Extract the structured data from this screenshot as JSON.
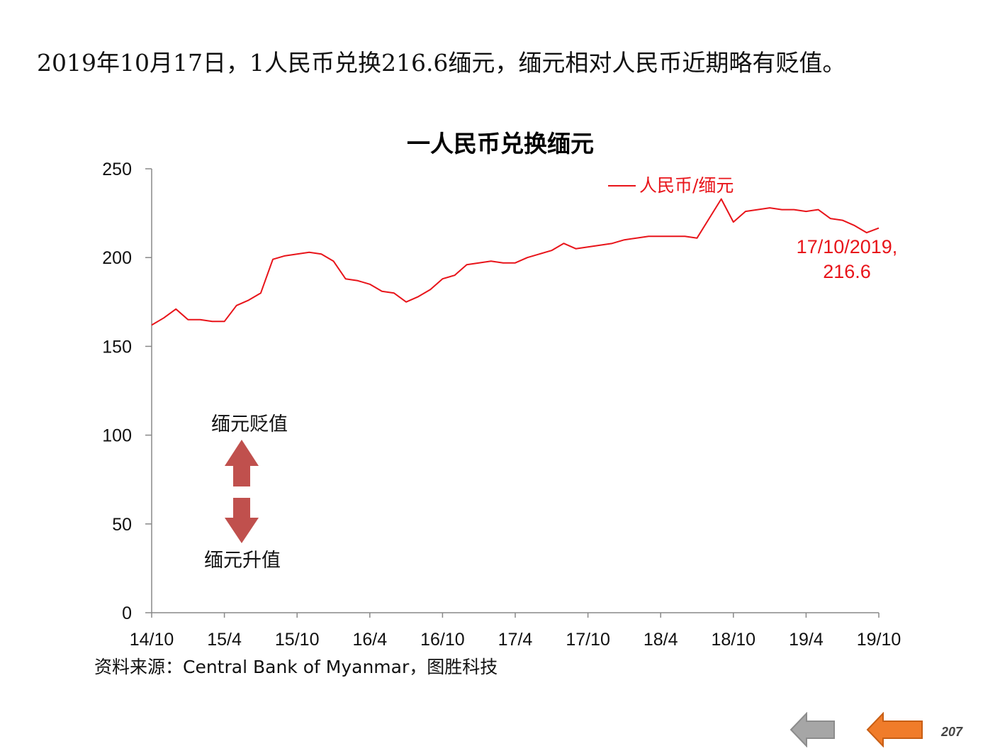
{
  "headline": "2019年10月17日，1人民币兑换216.6缅元，缅元相对人民币近期略有贬值。",
  "chart_data": {
    "type": "line",
    "title": "一人民币兑换缅元",
    "xlabel": "",
    "ylabel": "",
    "ylim": [
      0,
      250
    ],
    "yticks": [
      0,
      50,
      100,
      150,
      200,
      250
    ],
    "xticks": [
      "14/10",
      "15/4",
      "15/10",
      "16/4",
      "16/10",
      "17/4",
      "17/10",
      "18/4",
      "18/10",
      "19/4",
      "19/10"
    ],
    "grid": false,
    "legend_position": "top-right",
    "series": [
      {
        "name": "人民币/缅元",
        "color": "#e8141a",
        "points": [
          [
            "14/10",
            162
          ],
          [
            "14/11",
            166
          ],
          [
            "14/12",
            171
          ],
          [
            "15/01",
            165
          ],
          [
            "15/02",
            165
          ],
          [
            "15/03",
            164
          ],
          [
            "15/04",
            164
          ],
          [
            "15/05",
            173
          ],
          [
            "15/06",
            176
          ],
          [
            "15/07",
            180
          ],
          [
            "15/08",
            199
          ],
          [
            "15/09",
            201
          ],
          [
            "15/10",
            202
          ],
          [
            "15/11",
            203
          ],
          [
            "15/12",
            202
          ],
          [
            "16/01",
            198
          ],
          [
            "16/02",
            188
          ],
          [
            "16/03",
            187
          ],
          [
            "16/04",
            185
          ],
          [
            "16/05",
            181
          ],
          [
            "16/06",
            180
          ],
          [
            "16/07",
            175
          ],
          [
            "16/08",
            178
          ],
          [
            "16/09",
            182
          ],
          [
            "16/10",
            188
          ],
          [
            "16/11",
            190
          ],
          [
            "16/12",
            196
          ],
          [
            "17/01",
            197
          ],
          [
            "17/02",
            198
          ],
          [
            "17/03",
            197
          ],
          [
            "17/04",
            197
          ],
          [
            "17/05",
            200
          ],
          [
            "17/06",
            202
          ],
          [
            "17/07",
            204
          ],
          [
            "17/08",
            208
          ],
          [
            "17/09",
            205
          ],
          [
            "17/10",
            206
          ],
          [
            "17/11",
            207
          ],
          [
            "17/12",
            208
          ],
          [
            "18/01",
            210
          ],
          [
            "18/02",
            211
          ],
          [
            "18/03",
            212
          ],
          [
            "18/04",
            212
          ],
          [
            "18/05",
            212
          ],
          [
            "18/06",
            212
          ],
          [
            "18/07",
            211
          ],
          [
            "18/08",
            222
          ],
          [
            "18/09",
            233
          ],
          [
            "18/10",
            220
          ],
          [
            "18/11",
            226
          ],
          [
            "18/12",
            227
          ],
          [
            "19/01",
            228
          ],
          [
            "19/02",
            227
          ],
          [
            "19/03",
            227
          ],
          [
            "19/04",
            226
          ],
          [
            "19/05",
            227
          ],
          [
            "19/06",
            222
          ],
          [
            "19/07",
            221
          ],
          [
            "19/08",
            218
          ],
          [
            "19/09",
            214
          ],
          [
            "19/10",
            216.6
          ]
        ]
      }
    ],
    "annotation": {
      "line1": "17/10/2019,",
      "line2": "216.6"
    },
    "arrows": {
      "up_label": "缅元贬值",
      "down_label": "缅元升值",
      "color": "#c0504d"
    }
  },
  "source": "资料来源：Central Bank of Myanmar，图胜科技",
  "page_number": "207",
  "navigation": {
    "back": {
      "icon": "left-arrow-icon",
      "color": "#a6a6a6"
    },
    "forward": {
      "icon": "left-arrow-icon",
      "color": "#f07c2a"
    }
  }
}
